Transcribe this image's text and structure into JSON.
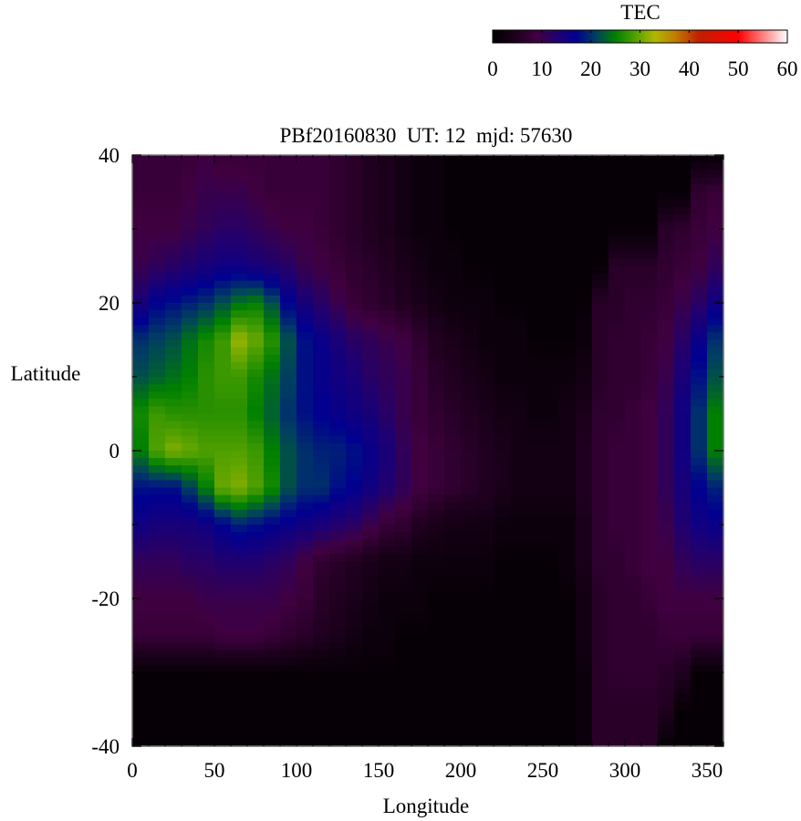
{
  "chart_data": {
    "type": "heatmap",
    "title": "PBf20160830  UT: 12  mjd: 57630",
    "xlabel": "Longitude",
    "ylabel": "Latitude",
    "xlim": [
      0,
      360
    ],
    "ylim": [
      -40,
      40
    ],
    "xticks": [
      0,
      50,
      100,
      150,
      200,
      250,
      300,
      350
    ],
    "yticks": [
      -40,
      -20,
      0,
      20,
      40
    ],
    "grid": false,
    "colorbar": {
      "label": "TEC",
      "range": [
        0,
        60
      ],
      "ticks": [
        0,
        10,
        20,
        30,
        40,
        50,
        60
      ],
      "position": "top-right",
      "colors": [
        [
          0,
          "#000000"
        ],
        [
          5,
          "#200020"
        ],
        [
          9,
          "#400040"
        ],
        [
          13,
          "#200070"
        ],
        [
          17,
          "#000090"
        ],
        [
          21,
          "#004060"
        ],
        [
          25,
          "#008000"
        ],
        [
          29,
          "#50a000"
        ],
        [
          33,
          "#b0b800"
        ],
        [
          37,
          "#c08000"
        ],
        [
          42,
          "#c02000"
        ],
        [
          50,
          "#ff0000"
        ],
        [
          60,
          "#ffffff"
        ]
      ]
    },
    "lon": [
      0,
      10,
      20,
      30,
      40,
      50,
      60,
      70,
      80,
      90,
      100,
      110,
      120,
      130,
      140,
      150,
      160,
      170,
      180,
      190,
      200,
      210,
      220,
      230,
      240,
      250,
      260,
      270,
      280,
      290,
      300,
      310,
      320,
      330,
      340,
      350
    ],
    "lat": [
      40,
      35,
      30,
      25,
      20,
      15,
      10,
      5,
      0,
      -5,
      -10,
      -15,
      -20,
      -25,
      -30,
      -35,
      -40
    ],
    "values": [
      [
        8,
        8,
        8,
        8,
        9,
        8,
        8,
        8,
        8,
        8,
        8,
        8,
        7,
        6,
        5,
        4,
        3,
        2,
        2,
        1,
        1,
        1,
        1,
        1,
        1,
        1,
        1,
        1,
        1,
        1,
        1,
        1,
        1,
        1,
        1,
        1
      ],
      [
        8,
        8,
        8,
        9,
        10,
        10,
        10,
        9,
        8,
        8,
        8,
        8,
        7,
        6,
        5,
        4,
        3,
        2,
        2,
        1,
        1,
        1,
        1,
        1,
        1,
        1,
        1,
        1,
        1,
        1,
        1,
        1,
        1,
        1,
        7,
        8
      ],
      [
        9,
        9,
        9,
        10,
        11,
        12,
        12,
        11,
        10,
        9,
        9,
        8,
        7,
        6,
        5,
        4,
        3,
        2,
        2,
        1,
        1,
        1,
        1,
        1,
        1,
        1,
        1,
        1,
        1,
        1,
        1,
        1,
        6,
        7,
        8,
        9
      ],
      [
        10,
        11,
        12,
        13,
        14,
        15,
        15,
        14,
        13,
        12,
        10,
        9,
        8,
        7,
        6,
        5,
        4,
        3,
        2,
        2,
        1,
        1,
        1,
        1,
        1,
        1,
        1,
        1,
        1,
        6,
        6,
        6,
        7,
        8,
        9,
        11
      ],
      [
        14,
        17,
        18,
        19,
        20,
        22,
        24,
        25,
        22,
        17,
        14,
        12,
        10,
        8,
        7,
        6,
        5,
        4,
        3,
        2,
        2,
        2,
        1,
        1,
        1,
        1,
        1,
        1,
        6,
        6,
        7,
        7,
        8,
        10,
        12,
        15
      ],
      [
        20,
        21,
        22,
        24,
        26,
        28,
        32,
        30,
        27,
        22,
        18,
        16,
        14,
        12,
        11,
        10,
        9,
        7,
        5,
        4,
        3,
        2,
        2,
        2,
        1,
        1,
        1,
        2,
        6,
        7,
        7,
        8,
        9,
        12,
        16,
        20
      ],
      [
        22,
        23,
        24,
        25,
        27,
        28,
        28,
        26,
        24,
        21,
        18,
        16,
        15,
        14,
        12,
        11,
        10,
        8,
        6,
        5,
        4,
        3,
        2,
        2,
        2,
        2,
        2,
        3,
        6,
        7,
        7,
        8,
        10,
        14,
        18,
        22
      ],
      [
        26,
        28,
        27,
        27,
        27,
        27,
        27,
        25,
        23,
        20,
        18,
        17,
        16,
        15,
        14,
        12,
        10,
        8,
        7,
        6,
        5,
        4,
        3,
        3,
        2,
        2,
        3,
        4,
        7,
        7,
        8,
        9,
        11,
        15,
        20,
        25
      ],
      [
        25,
        29,
        31,
        30,
        29,
        29,
        29,
        28,
        25,
        22,
        20,
        19,
        19,
        18,
        16,
        14,
        11,
        9,
        8,
        7,
        6,
        5,
        4,
        3,
        3,
        3,
        3,
        5,
        7,
        8,
        8,
        9,
        11,
        15,
        20,
        25
      ],
      [
        18,
        18,
        18,
        21,
        25,
        30,
        31,
        29,
        26,
        22,
        20,
        20,
        18,
        17,
        15,
        13,
        11,
        9,
        8,
        7,
        6,
        5,
        4,
        3,
        3,
        3,
        3,
        5,
        7,
        8,
        8,
        9,
        11,
        14,
        17,
        19
      ],
      [
        15,
        14,
        14,
        14,
        15,
        17,
        19,
        18,
        17,
        16,
        15,
        14,
        13,
        12,
        10,
        8,
        7,
        5,
        4,
        3,
        3,
        3,
        2,
        2,
        2,
        2,
        2,
        4,
        7,
        8,
        8,
        9,
        10,
        13,
        15,
        16
      ],
      [
        11,
        11,
        11,
        12,
        12,
        13,
        13,
        13,
        12,
        11,
        9,
        7,
        6,
        5,
        4,
        3,
        3,
        2,
        2,
        2,
        2,
        2,
        1,
        1,
        1,
        1,
        2,
        4,
        7,
        7,
        8,
        9,
        9,
        11,
        12,
        12
      ],
      [
        9,
        9,
        9,
        9,
        10,
        10,
        10,
        10,
        10,
        9,
        8,
        6,
        5,
        4,
        3,
        2,
        2,
        2,
        1,
        1,
        1,
        1,
        1,
        1,
        1,
        1,
        1,
        3,
        6,
        7,
        7,
        8,
        9,
        9,
        9,
        9
      ],
      [
        8,
        8,
        8,
        8,
        8,
        9,
        9,
        9,
        8,
        7,
        6,
        5,
        4,
        3,
        2,
        2,
        1,
        1,
        1,
        1,
        1,
        1,
        1,
        1,
        1,
        1,
        1,
        3,
        6,
        7,
        7,
        7,
        8,
        8,
        8,
        8
      ],
      [
        1,
        1,
        1,
        1,
        1,
        1,
        1,
        1,
        1,
        1,
        1,
        1,
        1,
        1,
        1,
        1,
        1,
        1,
        1,
        1,
        1,
        1,
        1,
        1,
        1,
        1,
        1,
        2,
        6,
        7,
        7,
        7,
        6,
        5,
        1,
        1
      ],
      [
        1,
        1,
        1,
        1,
        1,
        1,
        1,
        1,
        1,
        1,
        1,
        1,
        1,
        1,
        1,
        1,
        1,
        1,
        1,
        1,
        1,
        1,
        1,
        1,
        1,
        1,
        1,
        2,
        6,
        6,
        6,
        6,
        5,
        1,
        1,
        1
      ],
      [
        1,
        1,
        1,
        1,
        1,
        1,
        1,
        1,
        1,
        1,
        1,
        1,
        1,
        1,
        1,
        1,
        1,
        1,
        1,
        1,
        1,
        1,
        1,
        1,
        1,
        1,
        1,
        2,
        6,
        6,
        6,
        6,
        1,
        1,
        1,
        1
      ]
    ]
  }
}
